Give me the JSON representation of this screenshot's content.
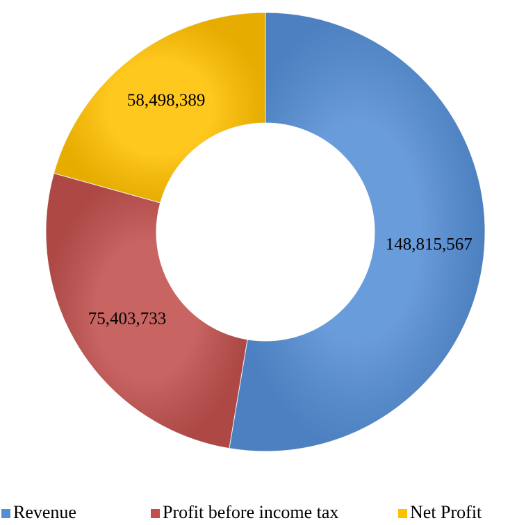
{
  "chart_data": {
    "type": "donut",
    "categories": [
      "Revenue",
      "Profit before income tax",
      "Net Profit"
    ],
    "values": [
      148815567,
      75403733,
      58498389
    ],
    "value_labels": [
      "148,815,567",
      "75,403,733",
      "58,498,389"
    ],
    "colors": [
      "#558ed5",
      "#c0504d",
      "#ffc000"
    ],
    "legend": "bottom"
  }
}
